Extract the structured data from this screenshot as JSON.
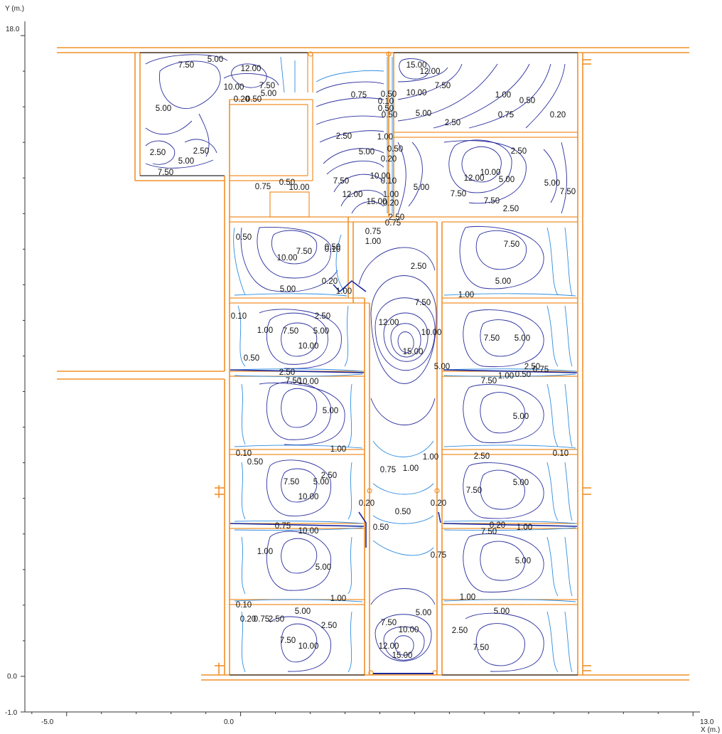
{
  "axes": {
    "y_label": "Y (m.)",
    "x_label": "X (m.)",
    "x_ticks": [
      {
        "value": -5.0,
        "label": "-5.0"
      },
      {
        "value": 0.0,
        "label": "0.0"
      },
      {
        "value": 13.0,
        "label": "13.0"
      }
    ],
    "y_ticks": [
      {
        "value": 18.0,
        "label": "18.0"
      },
      {
        "value": 0.0,
        "label": "0.0"
      },
      {
        "value": -1.0,
        "label": "-1.0"
      }
    ],
    "x_range": [
      -6.2,
      13.2
    ],
    "y_range": [
      -1.0,
      18.4
    ]
  },
  "contour_labels": [
    {
      "t": "7.50",
      "x": 262,
      "y": 92
    },
    {
      "t": "5.00",
      "x": 303,
      "y": 84
    },
    {
      "t": "12.00",
      "x": 353,
      "y": 97
    },
    {
      "t": "10.00",
      "x": 329,
      "y": 123
    },
    {
      "t": "7.50",
      "x": 376,
      "y": 121
    },
    {
      "t": "5.00",
      "x": 378,
      "y": 132
    },
    {
      "t": "0.50",
      "x": 357,
      "y": 140
    },
    {
      "t": "0.20",
      "x": 340,
      "y": 140
    },
    {
      "t": "5.00",
      "x": 230,
      "y": 153
    },
    {
      "t": "2.50",
      "x": 222,
      "y": 215
    },
    {
      "t": "2.50",
      "x": 283,
      "y": 213
    },
    {
      "t": "5.00",
      "x": 262,
      "y": 227
    },
    {
      "t": "7.50",
      "x": 233,
      "y": 243
    },
    {
      "t": "0.75",
      "x": 370,
      "y": 263
    },
    {
      "t": "0.50",
      "x": 404,
      "y": 257
    },
    {
      "t": "10.00",
      "x": 421,
      "y": 264
    },
    {
      "t": "15.00",
      "x": 586,
      "y": 92
    },
    {
      "t": "12.00",
      "x": 605,
      "y": 101
    },
    {
      "t": "7.50",
      "x": 623,
      "y": 121
    },
    {
      "t": "10.00",
      "x": 586,
      "y": 131
    },
    {
      "t": "0.50",
      "x": 547,
      "y": 133
    },
    {
      "t": "0.10",
      "x": 543,
      "y": 143
    },
    {
      "t": "0.75",
      "x": 505,
      "y": 134
    },
    {
      "t": "0.50",
      "x": 543,
      "y": 153
    },
    {
      "t": "0.50",
      "x": 548,
      "y": 162
    },
    {
      "t": "5.00",
      "x": 596,
      "y": 160
    },
    {
      "t": "2.50",
      "x": 637,
      "y": 173
    },
    {
      "t": "1.00",
      "x": 708,
      "y": 134
    },
    {
      "t": "0.50",
      "x": 742,
      "y": 142
    },
    {
      "t": "0.75",
      "x": 712,
      "y": 162
    },
    {
      "t": "0.20",
      "x": 785,
      "y": 162
    },
    {
      "t": "2.50",
      "x": 484,
      "y": 192
    },
    {
      "t": "1.00",
      "x": 542,
      "y": 193
    },
    {
      "t": "5.00",
      "x": 516,
      "y": 214
    },
    {
      "t": "0.50",
      "x": 556,
      "y": 210
    },
    {
      "t": "0.20",
      "x": 547,
      "y": 224
    },
    {
      "t": "2.50",
      "x": 730,
      "y": 213
    },
    {
      "t": "10.00",
      "x": 690,
      "y": 243
    },
    {
      "t": "12.00",
      "x": 667,
      "y": 251
    },
    {
      "t": "5.00",
      "x": 713,
      "y": 253
    },
    {
      "t": "5.00",
      "x": 777,
      "y": 258
    },
    {
      "t": "7.50",
      "x": 799,
      "y": 270
    },
    {
      "t": "7.50",
      "x": 480,
      "y": 255
    },
    {
      "t": "10.00",
      "x": 535,
      "y": 248
    },
    {
      "t": "0.10",
      "x": 547,
      "y": 255
    },
    {
      "t": "5.00",
      "x": 593,
      "y": 264
    },
    {
      "t": "7.50",
      "x": 645,
      "y": 273
    },
    {
      "t": "7.50",
      "x": 692,
      "y": 283
    },
    {
      "t": "2.50",
      "x": 719,
      "y": 294
    },
    {
      "t": "12.00",
      "x": 496,
      "y": 274
    },
    {
      "t": "1.00",
      "x": 550,
      "y": 274
    },
    {
      "t": "15.00",
      "x": 530,
      "y": 284
    },
    {
      "t": "0.20",
      "x": 550,
      "y": 286
    },
    {
      "t": "2.50",
      "x": 558,
      "y": 306
    },
    {
      "t": "0.75",
      "x": 553,
      "y": 314
    },
    {
      "t": "0.75",
      "x": 525,
      "y": 326
    },
    {
      "t": "1.00",
      "x": 525,
      "y": 340
    },
    {
      "t": "0.50",
      "x": 343,
      "y": 334
    },
    {
      "t": "10.00",
      "x": 404,
      "y": 363
    },
    {
      "t": "7.50",
      "x": 428,
      "y": 354
    },
    {
      "t": "0.50",
      "x": 468,
      "y": 348
    },
    {
      "t": "0.10",
      "x": 468,
      "y": 351
    },
    {
      "t": "2.50",
      "x": 589,
      "y": 375
    },
    {
      "t": "7.50",
      "x": 720,
      "y": 344
    },
    {
      "t": "5.00",
      "x": 708,
      "y": 396
    },
    {
      "t": "5.00",
      "x": 405,
      "y": 407
    },
    {
      "t": "0.20",
      "x": 464,
      "y": 396
    },
    {
      "t": "1.00",
      "x": 484,
      "y": 410
    },
    {
      "t": "7.50",
      "x": 595,
      "y": 426
    },
    {
      "t": "1.00",
      "x": 656,
      "y": 415
    },
    {
      "t": "0.10",
      "x": 336,
      "y": 445
    },
    {
      "t": "2.50",
      "x": 454,
      "y": 445
    },
    {
      "t": "1.00",
      "x": 373,
      "y": 465
    },
    {
      "t": "7.50",
      "x": 409,
      "y": 466
    },
    {
      "t": "5.00",
      "x": 452,
      "y": 466
    },
    {
      "t": "10.00",
      "x": 434,
      "y": 487
    },
    {
      "t": "12.00",
      "x": 547,
      "y": 454
    },
    {
      "t": "10.00",
      "x": 607,
      "y": 468
    },
    {
      "t": "15.00",
      "x": 581,
      "y": 495
    },
    {
      "t": "7.50",
      "x": 692,
      "y": 476
    },
    {
      "t": "5.00",
      "x": 735,
      "y": 476
    },
    {
      "t": "0.50",
      "x": 354,
      "y": 504
    },
    {
      "t": "5.00",
      "x": 622,
      "y": 516
    },
    {
      "t": "2.50",
      "x": 749,
      "y": 516
    },
    {
      "t": "2.50",
      "x": 404,
      "y": 524
    },
    {
      "t": "7.50",
      "x": 413,
      "y": 536
    },
    {
      "t": "10.00",
      "x": 434,
      "y": 537
    },
    {
      "t": "7.50",
      "x": 688,
      "y": 536
    },
    {
      "t": "1.00",
      "x": 712,
      "y": 529
    },
    {
      "t": "0.50",
      "x": 736,
      "y": 527
    },
    {
      "t": "0.75",
      "x": 761,
      "y": 520
    },
    {
      "t": "5.00",
      "x": 465,
      "y": 578
    },
    {
      "t": "5.00",
      "x": 733,
      "y": 586
    },
    {
      "t": "0.10",
      "x": 343,
      "y": 638
    },
    {
      "t": "0.50",
      "x": 359,
      "y": 650
    },
    {
      "t": "1.00",
      "x": 476,
      "y": 632
    },
    {
      "t": "1.00",
      "x": 606,
      "y": 643
    },
    {
      "t": "2.50",
      "x": 678,
      "y": 642
    },
    {
      "t": "0.10",
      "x": 789,
      "y": 638
    },
    {
      "t": "0.75",
      "x": 546,
      "y": 661
    },
    {
      "t": "1.00",
      "x": 578,
      "y": 659
    },
    {
      "t": "2.50",
      "x": 463,
      "y": 669
    },
    {
      "t": "7.50",
      "x": 410,
      "y": 678
    },
    {
      "t": "5.00",
      "x": 452,
      "y": 678
    },
    {
      "t": "5.00",
      "x": 733,
      "y": 679
    },
    {
      "t": "7.50",
      "x": 667,
      "y": 690
    },
    {
      "t": "10.00",
      "x": 434,
      "y": 699
    },
    {
      "t": "0.20",
      "x": 516,
      "y": 708
    },
    {
      "t": "0.50",
      "x": 567,
      "y": 720
    },
    {
      "t": "0.20",
      "x": 617,
      "y": 708
    },
    {
      "t": "0.75",
      "x": 398,
      "y": 740
    },
    {
      "t": "10.00",
      "x": 434,
      "y": 747
    },
    {
      "t": "0.50",
      "x": 536,
      "y": 742
    },
    {
      "t": "7.50",
      "x": 688,
      "y": 748
    },
    {
      "t": "0.20",
      "x": 700,
      "y": 739
    },
    {
      "t": "1.00",
      "x": 738,
      "y": 742
    },
    {
      "t": "1.00",
      "x": 373,
      "y": 776
    },
    {
      "t": "0.75",
      "x": 617,
      "y": 781
    },
    {
      "t": "5.00",
      "x": 455,
      "y": 798
    },
    {
      "t": "5.00",
      "x": 736,
      "y": 789
    },
    {
      "t": "1.00",
      "x": 476,
      "y": 842
    },
    {
      "t": "1.00",
      "x": 658,
      "y": 840
    },
    {
      "t": "0.10",
      "x": 343,
      "y": 851
    },
    {
      "t": "5.00",
      "x": 426,
      "y": 860
    },
    {
      "t": "5.00",
      "x": 596,
      "y": 862
    },
    {
      "t": "5.00",
      "x": 706,
      "y": 860
    },
    {
      "t": "0.20",
      "x": 349,
      "y": 871
    },
    {
      "t": "0.75",
      "x": 368,
      "y": 871
    },
    {
      "t": "2.50",
      "x": 389,
      "y": 871
    },
    {
      "t": "7.50",
      "x": 547,
      "y": 876
    },
    {
      "t": "10.00",
      "x": 575,
      "y": 886
    },
    {
      "t": "2.50",
      "x": 463,
      "y": 880
    },
    {
      "t": "2.50",
      "x": 647,
      "y": 887
    },
    {
      "t": "7.50",
      "x": 405,
      "y": 901
    },
    {
      "t": "10.00",
      "x": 434,
      "y": 909
    },
    {
      "t": "12.00",
      "x": 547,
      "y": 909
    },
    {
      "t": "15.00",
      "x": 566,
      "y": 922
    },
    {
      "t": "7.50",
      "x": 677,
      "y": 911
    }
  ]
}
